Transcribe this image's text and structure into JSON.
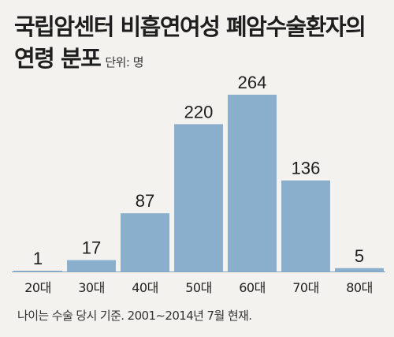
{
  "title_line1": "국립암센터 비흡연여성 폐암수술환자의",
  "title_line2": "연령 분포",
  "unit": "단위: 명",
  "footnote": "나이는 수술 당시 기준. 2001∼2014년 7월 현재.",
  "colors": {
    "bar": "#8aafcc",
    "baseline": "#7fa3c0",
    "background": "#f3f2ee"
  },
  "chart_data": {
    "type": "bar",
    "categories": [
      "20대",
      "30대",
      "40대",
      "50대",
      "60대",
      "70대",
      "80대"
    ],
    "values": [
      1,
      17,
      87,
      220,
      264,
      136,
      5
    ],
    "ylim": [
      0,
      264
    ],
    "grid": false,
    "data_labels": true
  }
}
